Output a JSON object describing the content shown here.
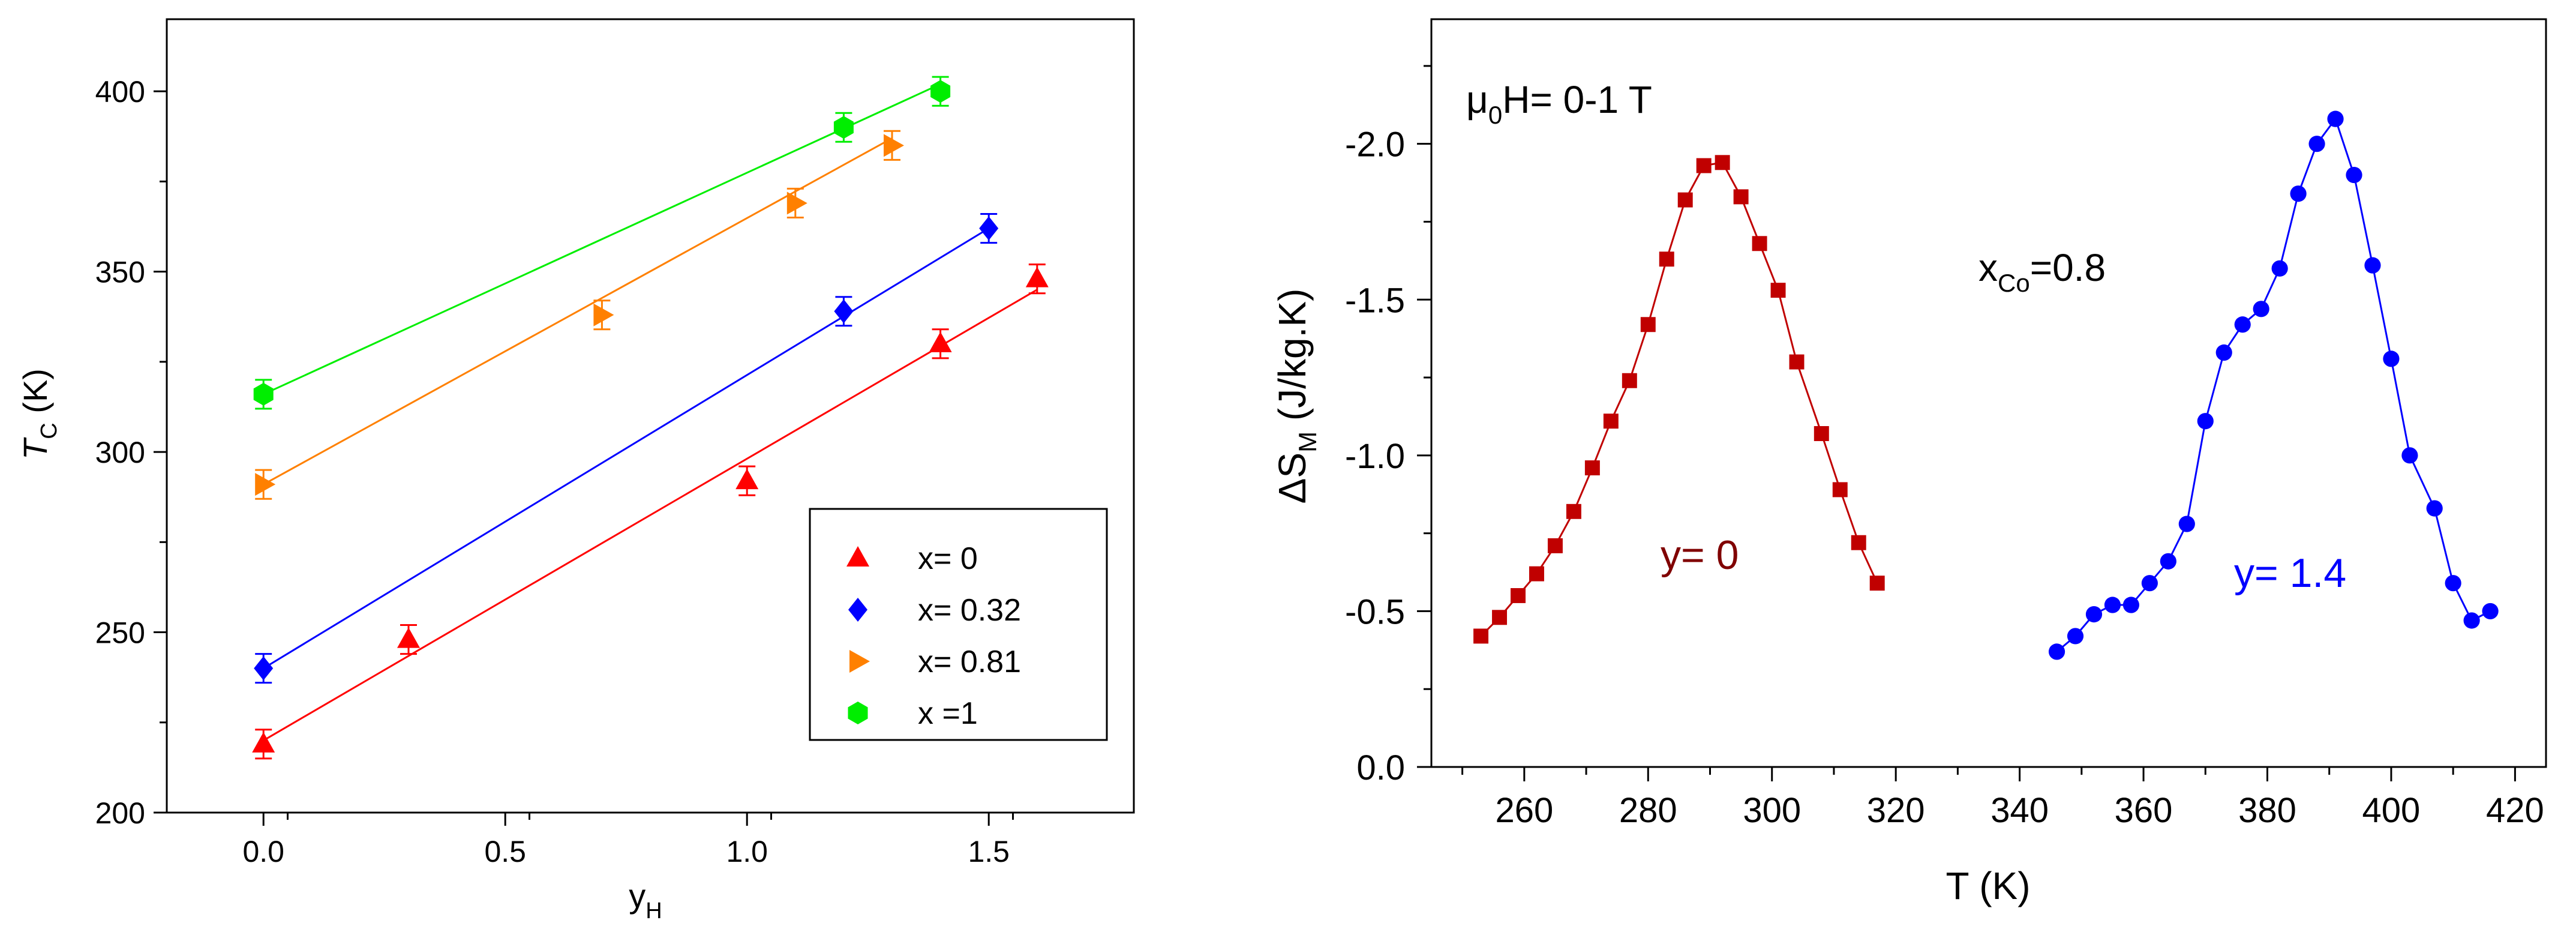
{
  "chart_data": [
    {
      "type": "scatter",
      "title": "",
      "xlabel": "y",
      "xlabel_sub": "H",
      "ylabel": "T",
      "ylabel_sub": "C",
      "ylabel_unit": " (K)",
      "xlim": [
        -0.2,
        1.8
      ],
      "ylim": [
        200,
        420
      ],
      "x_ticks": [
        0.0,
        0.5,
        1.0,
        1.5
      ],
      "x_tick_labels": [
        "0.0",
        "0.5",
        "1.0",
        "1.5"
      ],
      "y_ticks": [
        200,
        250,
        300,
        350,
        400
      ],
      "y_tick_labels": [
        "200",
        "250",
        "300",
        "350",
        "400"
      ],
      "legend_position": "bottom-right",
      "series": [
        {
          "name": "x= 0",
          "marker": "triangle-up",
          "color": "#ff0000",
          "points": [
            [
              0.0,
              219
            ],
            [
              0.3,
              248
            ],
            [
              1.0,
              292
            ],
            [
              1.4,
              330
            ],
            [
              1.6,
              348
            ]
          ],
          "error": 4,
          "fit": [
            [
              0.0,
              220
            ],
            [
              1.6,
              345
            ]
          ]
        },
        {
          "name": "x= 0.32",
          "marker": "diamond",
          "color": "#0000ff",
          "points": [
            [
              0.0,
              240
            ],
            [
              1.2,
              339
            ],
            [
              1.5,
              362
            ]
          ],
          "error": 4,
          "fit": [
            [
              0.0,
              240
            ],
            [
              1.5,
              362
            ]
          ]
        },
        {
          "name": "x= 0.81",
          "marker": "triangle-right",
          "color": "#ff8000",
          "points": [
            [
              0.0,
              291
            ],
            [
              0.7,
              338
            ],
            [
              1.1,
              369
            ],
            [
              1.3,
              385
            ]
          ],
          "error": 4,
          "fit": [
            [
              0.0,
              291
            ],
            [
              1.3,
              387
            ]
          ]
        },
        {
          "name": "x =1",
          "marker": "hexagon",
          "color": "#00ee00",
          "points": [
            [
              0.0,
              316
            ],
            [
              1.2,
              390
            ],
            [
              1.4,
              400
            ]
          ],
          "error": 4,
          "fit": [
            [
              0.0,
              316
            ],
            [
              1.4,
              402
            ]
          ]
        }
      ]
    },
    {
      "type": "line",
      "title": "",
      "xlabel": "T (K)",
      "ylabel": "ΔS",
      "ylabel_sub": "M",
      "ylabel_unit": " (J/kg.K)",
      "xlim": [
        245,
        425
      ],
      "ylim": [
        0.0,
        -2.4
      ],
      "x_ticks": [
        260,
        280,
        300,
        320,
        340,
        360,
        380,
        400,
        420
      ],
      "x_tick_labels": [
        "260",
        "280",
        "300",
        "320",
        "340",
        "360",
        "380",
        "400",
        "420"
      ],
      "y_ticks": [
        0.0,
        -0.5,
        -1.0,
        -1.5,
        -2.0
      ],
      "y_tick_labels": [
        "0.0",
        "-0.5",
        "-1.0",
        "-1.5",
        "-2.0"
      ],
      "annotations": {
        "field": {
          "main": "μ",
          "sub1": "0",
          "rest": "H= 0-1 T"
        },
        "composition": {
          "main": "x",
          "sub": "Co",
          "rest": "=0.8"
        }
      },
      "series": [
        {
          "name": "y= 0",
          "marker": "square",
          "color": "#c00000",
          "label_color": "#800000",
          "x": [
            253,
            256,
            259,
            262,
            265,
            268,
            271,
            274,
            277,
            280,
            283,
            286,
            289,
            292,
            295,
            298,
            301,
            304,
            308,
            311,
            314,
            317
          ],
          "y": [
            -0.42,
            -0.48,
            -0.55,
            -0.62,
            -0.71,
            -0.82,
            -0.96,
            -1.11,
            -1.24,
            -1.42,
            -1.63,
            -1.82,
            -1.93,
            -1.94,
            -1.83,
            -1.68,
            -1.53,
            -1.3,
            -1.07,
            -0.89,
            -0.72,
            -0.59
          ]
        },
        {
          "name": "y= 1.4",
          "marker": "circle",
          "color": "#0000ff",
          "label_color": "#0000ff",
          "x": [
            346,
            349,
            352,
            355,
            358,
            361,
            364,
            367,
            370,
            373,
            376,
            379,
            382,
            385,
            388,
            391,
            394,
            397,
            400,
            403,
            407,
            410,
            413,
            416
          ],
          "y": [
            -0.37,
            -0.42,
            -0.49,
            -0.52,
            -0.52,
            -0.59,
            -0.66,
            -0.78,
            -1.11,
            -1.33,
            -1.42,
            -1.47,
            -1.6,
            -1.84,
            -2.0,
            -2.08,
            -1.9,
            -1.61,
            -1.31,
            -1.0,
            -0.83,
            -0.59,
            -0.47,
            -0.5
          ]
        }
      ]
    }
  ]
}
